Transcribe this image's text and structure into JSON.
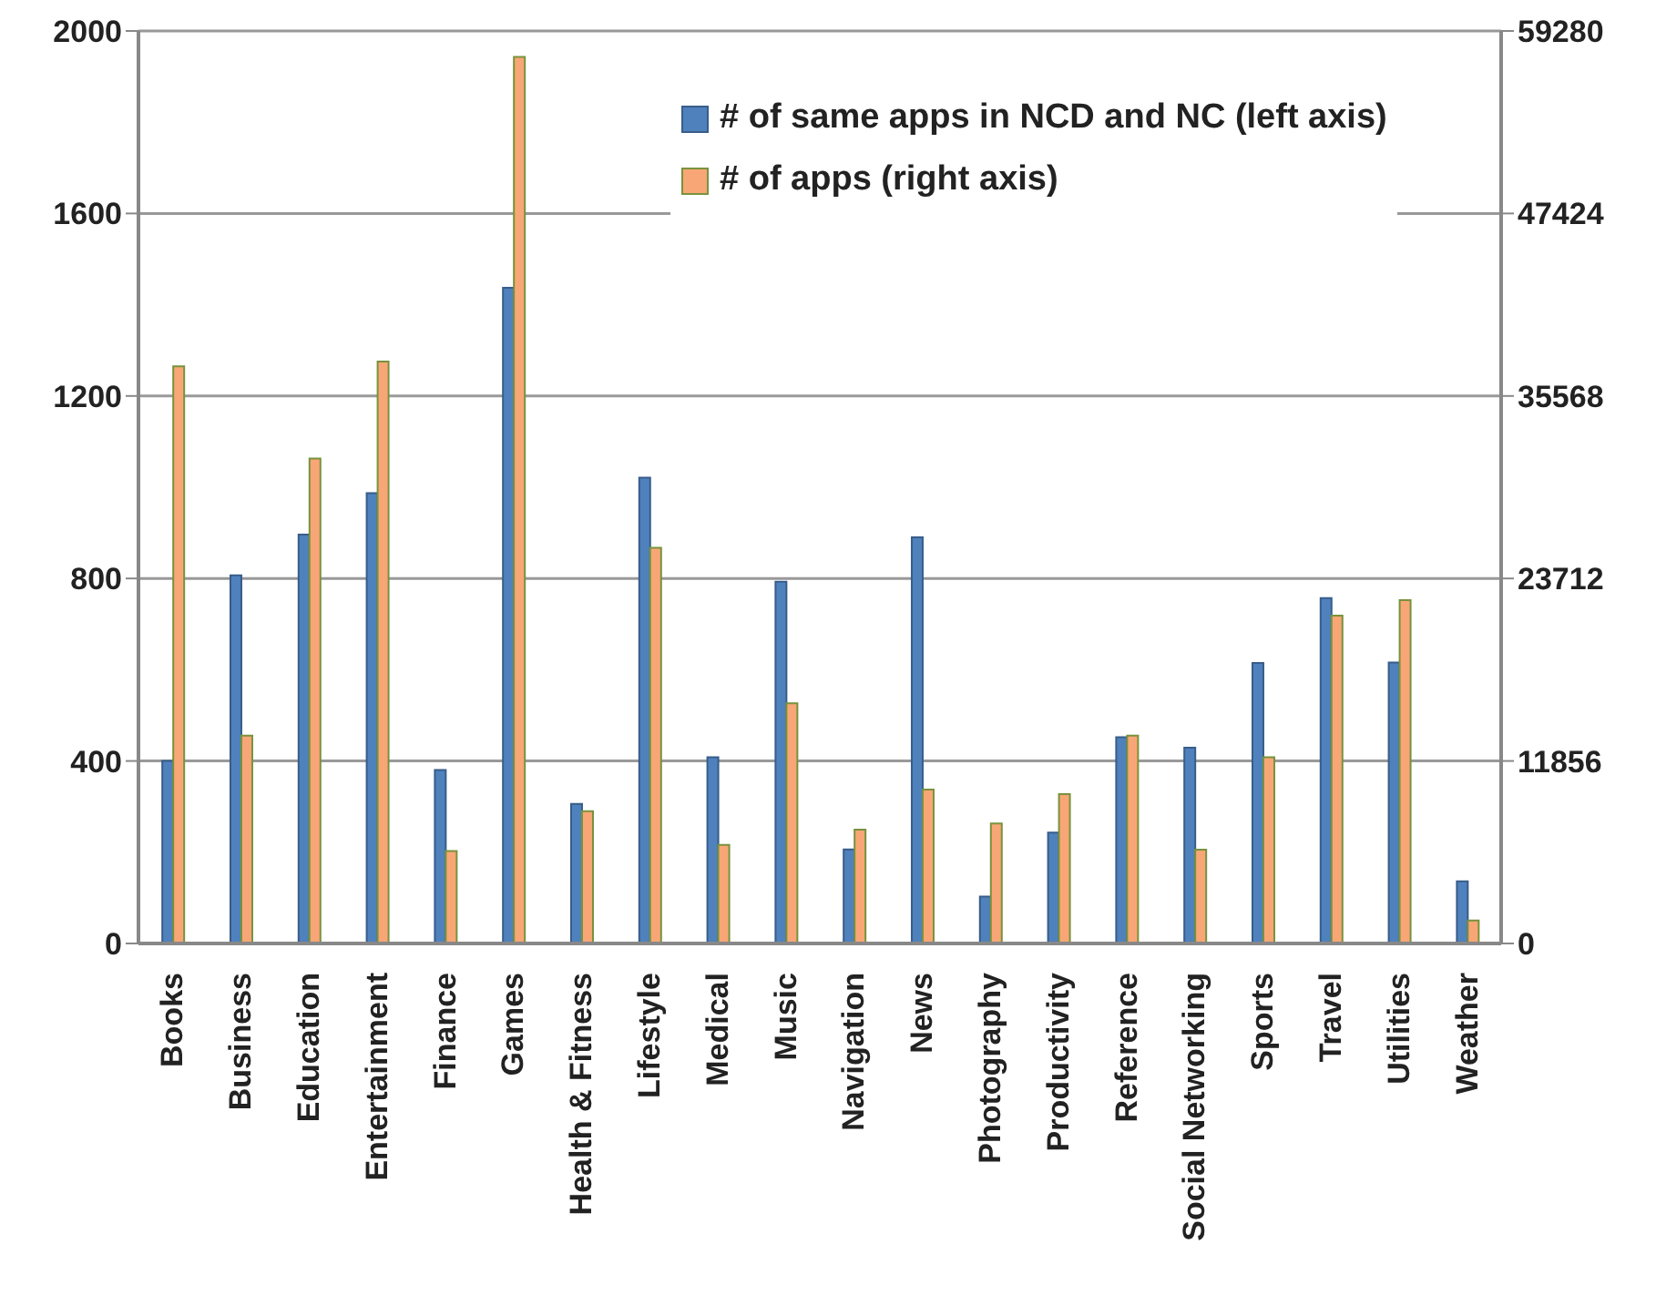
{
  "chart_data": {
    "type": "bar",
    "categories": [
      "Books",
      "Business",
      "Education",
      "Entertainment",
      "Finance",
      "Games",
      "Health & Fitness",
      "Lifestyle",
      "Medical",
      "Music",
      "Navigation",
      "News",
      "Photography",
      "Productivity",
      "Reference",
      "Social Networking",
      "Sports",
      "Travel",
      "Utilities",
      "Weather"
    ],
    "series": [
      {
        "name": "# of same apps in NCD and NC (left axis)",
        "color": "#4f81bd",
        "values": [
          400,
          807,
          896,
          987,
          380,
          1437,
          306,
          1021,
          408,
          793,
          206,
          890,
          103,
          243,
          452,
          429,
          615,
          757,
          616,
          136
        ]
      },
      {
        "name": "# of apps (right axis)",
        "color": "#f9a677",
        "axis": "y2",
        "values": [
          37500,
          13500,
          31500,
          37800,
          6000,
          57600,
          8600,
          25700,
          6400,
          15600,
          7400,
          10000,
          7800,
          9700,
          13500,
          6100,
          12100,
          21300,
          22300,
          1500
        ]
      }
    ],
    "ylim": [
      0,
      2000
    ],
    "yticks": [
      0,
      400,
      800,
      1200,
      1600,
      2000
    ],
    "y2lim": [
      0,
      59280
    ],
    "y2ticks": [
      0,
      11856,
      23712,
      35568,
      47424,
      59280
    ],
    "grid": "y",
    "legend": "top right"
  }
}
